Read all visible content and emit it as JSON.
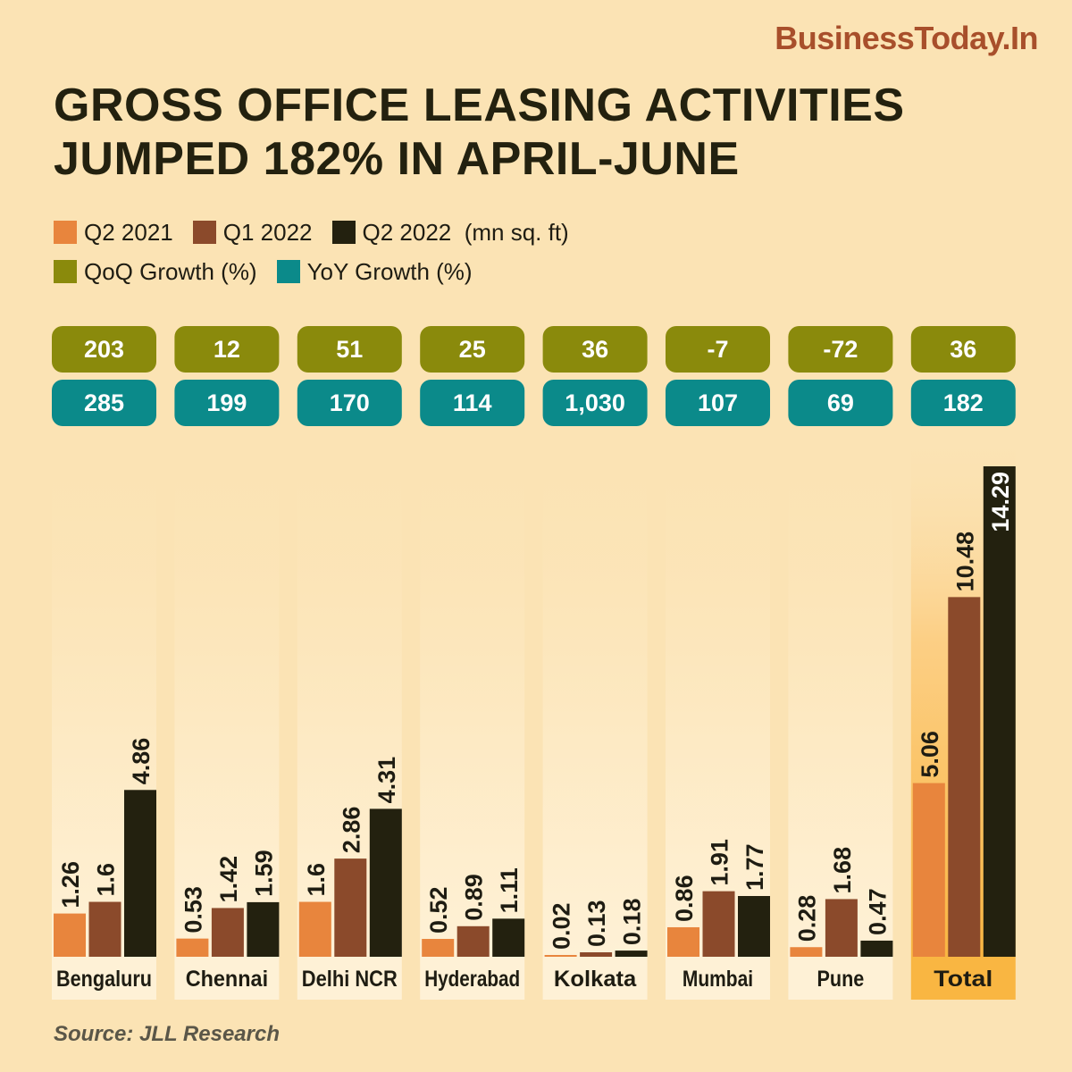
{
  "brand": "BusinessToday.In",
  "title_line1": "GROSS OFFICE LEASING ACTIVITIES",
  "title_line2": "JUMPED 182% IN APRIL-JUNE",
  "legend": {
    "row1": [
      {
        "label": "Q2 2021",
        "color": "#e8853d"
      },
      {
        "label": "Q1 2022",
        "color": "#8b4a2b"
      },
      {
        "label": "Q2 2022  (mn sq. ft)",
        "color": "#23210f"
      }
    ],
    "row2": [
      {
        "label": "QoQ Growth (%)",
        "color": "#8a8a0c"
      },
      {
        "label": "YoY Growth (%)",
        "color": "#0b8a8a"
      }
    ]
  },
  "source": "Source: JLL Research",
  "chart_data": {
    "type": "bar",
    "categories": [
      "Bengaluru",
      "Chennai",
      "Delhi NCR",
      "Hyderabad",
      "Kolkata",
      "Mumbai",
      "Pune",
      "Total"
    ],
    "series": [
      {
        "name": "Q2 2021",
        "color": "#e8853d",
        "values": [
          1.26,
          0.53,
          1.6,
          0.52,
          0.02,
          0.86,
          0.28,
          5.06
        ],
        "labels": [
          "1.26",
          "0.53",
          "1.6",
          "0.52",
          "0.02",
          "0.86",
          "0.28",
          "5.06"
        ]
      },
      {
        "name": "Q1 2022",
        "color": "#8b4a2b",
        "values": [
          1.6,
          1.42,
          2.86,
          0.89,
          0.13,
          1.91,
          1.68,
          10.48
        ],
        "labels": [
          "1.6",
          "1.42",
          "2.86",
          "0.89",
          "0.13",
          "1.91",
          "1.68",
          "10.48"
        ]
      },
      {
        "name": "Q2 2022",
        "color": "#23210f",
        "values": [
          4.86,
          1.59,
          4.31,
          1.11,
          0.18,
          1.77,
          0.47,
          14.29
        ],
        "labels": [
          "4.86",
          "1.59",
          "4.31",
          "1.11",
          "0.18",
          "1.77",
          "0.47",
          "14.29"
        ]
      }
    ],
    "qoq_growth": [
      "203",
      "12",
      "51",
      "25",
      "36",
      "-7",
      "-72",
      "36"
    ],
    "yoy_growth": [
      "285",
      "199",
      "170",
      "114",
      "1,030",
      "107",
      "69",
      "182"
    ],
    "unit": "mn sq. ft",
    "ylim": [
      0,
      14.29
    ],
    "grid": false,
    "highlight_category": "Total"
  }
}
